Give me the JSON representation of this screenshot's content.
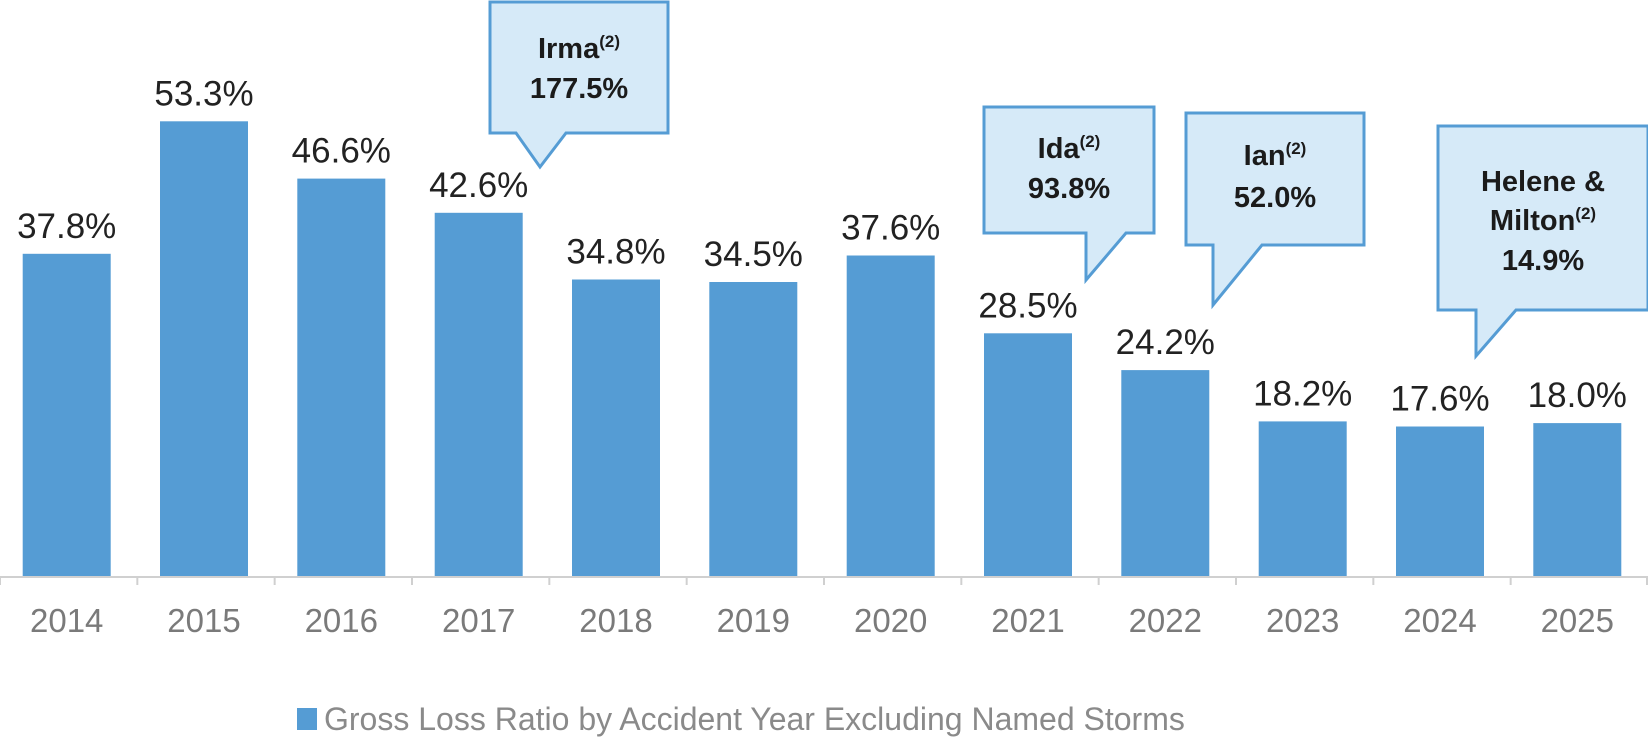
{
  "chart_data": {
    "type": "bar",
    "categories": [
      "2014",
      "2015",
      "2016",
      "2017",
      "2018",
      "2019",
      "2020",
      "2021",
      "2022",
      "2023",
      "2024",
      "2025"
    ],
    "series": [
      {
        "name": "Gross Loss Ratio by Accident Year Excluding Named Storms",
        "values": [
          37.8,
          53.3,
          46.6,
          42.6,
          34.8,
          34.5,
          37.6,
          28.5,
          24.2,
          18.2,
          17.6,
          18.0
        ],
        "labels": [
          "37.8%",
          "53.3%",
          "46.6%",
          "42.6%",
          "34.8%",
          "34.5%",
          "37.6%",
          "28.5%",
          "24.2%",
          "18.2%",
          "17.6%",
          "18.0%"
        ]
      }
    ],
    "ylim": [
      0,
      70
    ],
    "grid": false,
    "legend_position": "bottom-center",
    "bar_color": "#559CD4",
    "callout_fill": "#D6EAF8",
    "callout_border": "#559CD4",
    "callouts": [
      {
        "category": "2017",
        "lines": [
          "Irma"
        ],
        "sup": "(2)",
        "value": "177.5%"
      },
      {
        "category": "2021",
        "lines": [
          "Ida"
        ],
        "sup": "(2)",
        "value": "93.8%"
      },
      {
        "category": "2022",
        "lines": [
          "Ian"
        ],
        "sup": "(2)",
        "value": "52.0%"
      },
      {
        "category": "2024",
        "lines": [
          "Helene &",
          "Milton"
        ],
        "sup": "(2)",
        "value": "14.9%"
      }
    ]
  }
}
